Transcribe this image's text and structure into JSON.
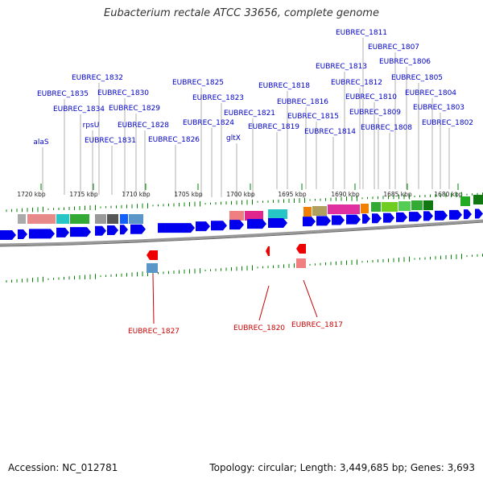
{
  "title": "Eubacterium rectale ATCC 33656, complete genome",
  "footer": {
    "accession": "Accession: NC_012781",
    "topology": "Topology: circular; Length: 3,449,685 bp; Genes: 3,693"
  },
  "colors": {
    "label_top": "#0000c8",
    "label_bottom": "#c80000",
    "tick": "#008000",
    "gene_forward_strand": "#0000ee",
    "gene_reverse_strand": "#ee0000",
    "backbone": "#999999"
  },
  "scale_labels": [
    "1720 kbp",
    "1715 kbp",
    "1710 kbp",
    "1705 kbp",
    "1700 kbp",
    "1695 kbp",
    "1690 kbp",
    "1685 kbp",
    "1680 kbp"
  ],
  "top_labels": [
    "EUBREC_1811",
    "EUBREC_1807",
    "EUBREC_1806",
    "EUBREC_1813",
    "EUBREC_1805",
    "EUBREC_1812",
    "EUBREC_1818",
    "EUBREC_1825",
    "EUBREC_1832",
    "EUBREC_1810",
    "EUBREC_1804",
    "EUBREC_1835",
    "EUBREC_1830",
    "EUBREC_1823",
    "EUBREC_1816",
    "EUBREC_1803",
    "EUBREC_1834",
    "EUBREC_1829",
    "EUBREC_1821",
    "EUBREC_1809",
    "EUBREC_1815",
    "EUBREC_1802",
    "EUBREC_1824",
    "rpsU",
    "EUBREC_1828",
    "EUBREC_1819",
    "EUBREC_1808",
    "EUBREC_1814",
    "gltX",
    "EUBREC_1826",
    "alaS",
    "EUBREC_1831"
  ],
  "bottom_labels": [
    "EUBREC_1827",
    "EUBREC_1820",
    "EUBREC_1817"
  ]
}
